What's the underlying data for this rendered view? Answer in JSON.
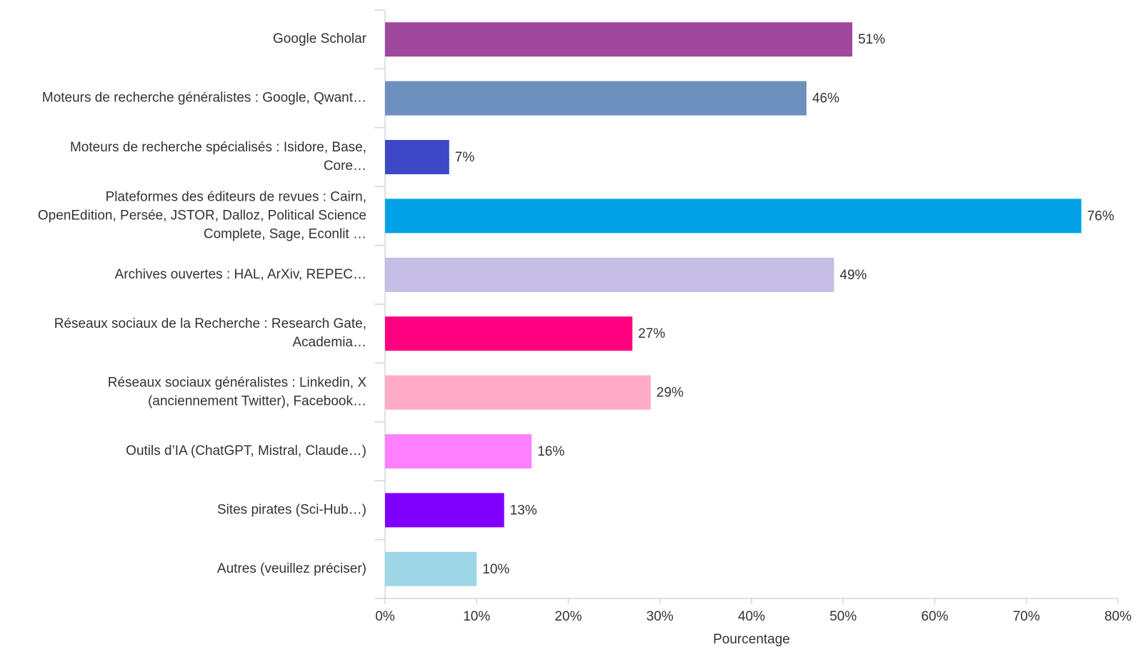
{
  "chart_data": {
    "type": "hbar",
    "categories": [
      [
        "Google Scholar"
      ],
      [
        "Moteurs de recherche généralistes : Google, Qwant…"
      ],
      [
        "Moteurs de recherche spécialisés : Isidore, Base,",
        "Core…"
      ],
      [
        "Plateformes des éditeurs de revues : Cairn,",
        "OpenEdition, Persée, JSTOR, Dalloz, Political Science",
        "Complete, Sage, Econlit …"
      ],
      [
        "Archives ouvertes : HAL, ArXiv, REPEC…"
      ],
      [
        "Réseaux sociaux de la Recherche : Research Gate,",
        "Academia…"
      ],
      [
        "Réseaux sociaux généralistes : Linkedin, X",
        "(anciennement Twitter), Facebook…"
      ],
      [
        "Outils d’IA (ChatGPT, Mistral, Claude…)"
      ],
      [
        "Sites pirates (Sci-Hub…)"
      ],
      [
        "Autres (veuillez préciser)"
      ]
    ],
    "values": [
      51,
      46,
      7,
      76,
      49,
      27,
      29,
      16,
      13,
      10
    ],
    "value_labels": [
      "51%",
      "46%",
      "7%",
      "76%",
      "49%",
      "27%",
      "29%",
      "16%",
      "13%",
      "10%"
    ],
    "colors": [
      "#a0479e",
      "#6e90bf",
      "#3d47c8",
      "#00a2e6",
      "#c6bee6",
      "#ff0080",
      "#ffabc8",
      "#ff80ff",
      "#8000ff",
      "#9ed8e8"
    ],
    "xlabel": "Pourcentage",
    "xlim": [
      0,
      80
    ],
    "xticks": [
      {
        "value": 0,
        "label": "0%"
      },
      {
        "value": 10,
        "label": "10%"
      },
      {
        "value": 20,
        "label": "20%"
      },
      {
        "value": 30,
        "label": "30%"
      },
      {
        "value": 40,
        "label": "40%"
      },
      {
        "value": 50,
        "label": "50%"
      },
      {
        "value": 60,
        "label": "60%"
      },
      {
        "value": 70,
        "label": "70%"
      },
      {
        "value": 80,
        "label": "80%"
      }
    ],
    "grid": false
  }
}
